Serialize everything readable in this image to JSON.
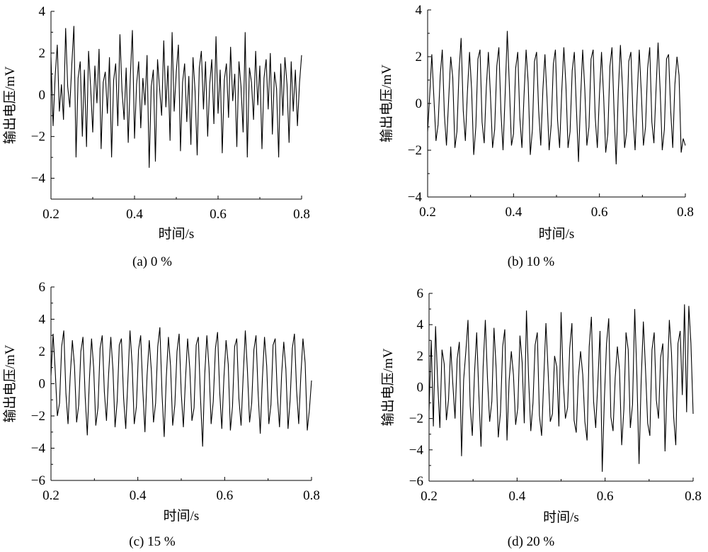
{
  "chart_data": [
    {
      "type": "line",
      "caption": "(a) 0 %",
      "xlabel": "时间/s",
      "ylabel": "输出电压/mV",
      "xlim": [
        0.2,
        0.8
      ],
      "ylim": [
        -5,
        4
      ],
      "xticks": [
        "0.2",
        "0.4",
        "0.6",
        "0.8"
      ],
      "yticks": [
        "4",
        "2",
        "0",
        "−2",
        "−4"
      ],
      "ytick_values": [
        4,
        2,
        0,
        -2,
        -4
      ],
      "xtick_values": [
        0.2,
        0.4,
        0.6,
        0.8
      ],
      "series": [
        {
          "name": "0 %",
          "color": "#000000",
          "x_range": [
            0.2,
            0.8
          ],
          "values": [
            1.8,
            -1.5,
            0.9,
            2.4,
            -0.8,
            0.5,
            -1.2,
            3.2,
            0.4,
            -0.6,
            1.5,
            3.3,
            -3.0,
            0.8,
            1.6,
            -2.0,
            1.2,
            -2.5,
            2.1,
            0.3,
            -1.8,
            1.4,
            -0.4,
            2.2,
            -2.6,
            0.6,
            1.1,
            -0.9,
            1.8,
            -3.0,
            0.7,
            1.5,
            -1.5,
            2.9,
            0.2,
            -1.2,
            1.3,
            -2.3,
            0.9,
            3.1,
            -2.1,
            0.5,
            1.6,
            -1.6,
            0.8,
            -0.5,
            1.9,
            -3.5,
            0.4,
            1.2,
            -3.2,
            1.7,
            0.3,
            -1.0,
            2.6,
            -0.6,
            1.4,
            -2.2,
            3.0,
            -0.8,
            1.1,
            2.4,
            -2.7,
            0.6,
            1.5,
            -1.3,
            0.9,
            -2.4,
            1.8,
            0.2,
            -2.9,
            1.3,
            2.1,
            -0.7,
            1.6,
            -2.0,
            0.5,
            1.7,
            -1.4,
            2.8,
            -0.9,
            1.2,
            -2.8,
            0.7,
            1.5,
            -1.1,
            2.3,
            -0.3,
            1.0,
            -2.5,
            1.6,
            0.4,
            -1.8,
            3.0,
            -3.0,
            1.3,
            0.6,
            -1.2,
            2.1,
            -0.5,
            1.4,
            -2.6,
            0.8,
            1.7,
            -0.7,
            2.0,
            -1.9,
            1.1,
            0.3,
            -3.0,
            1.5,
            -1.0,
            1.8,
            0.5,
            -2.3,
            1.6,
            -0.8,
            1.2,
            -1.5,
            0.6,
            1.9
          ]
        }
      ]
    },
    {
      "type": "line",
      "caption": "(b) 10 %",
      "xlabel": "时间/s",
      "ylabel": "输出电压/mV",
      "xlim": [
        0.2,
        0.8
      ],
      "ylim": [
        -4,
        4
      ],
      "xticks": [
        "0.2",
        "0.4",
        "0.6",
        "0.8"
      ],
      "yticks": [
        "4",
        "2",
        "0",
        "−2",
        "−4"
      ],
      "ytick_values": [
        4,
        2,
        0,
        -2,
        -4
      ],
      "xtick_values": [
        0.2,
        0.4,
        0.6,
        0.8
      ],
      "series": [
        {
          "name": "10 %",
          "color": "#000000",
          "x_range": [
            0.2,
            0.8
          ],
          "values": [
            -1.2,
            0.4,
            2.1,
            0.2,
            -1.6,
            -0.9,
            1.2,
            2.3,
            -0.5,
            -1.8,
            0.1,
            2.0,
            1.1,
            -1.9,
            -1.2,
            1.4,
            2.8,
            -0.3,
            -1.6,
            0.5,
            2.2,
            0.6,
            -2.2,
            -1.0,
            1.9,
            2.3,
            -0.8,
            -1.7,
            0.7,
            2.2,
            0.3,
            -1.9,
            -1.1,
            1.6,
            2.4,
            -0.4,
            -2.0,
            0.4,
            3.1,
            0.8,
            -1.8,
            -1.3,
            1.5,
            2.2,
            -0.6,
            -1.9,
            0.3,
            2.3,
            0.9,
            -2.2,
            -1.1,
            1.8,
            2.2,
            -0.3,
            -1.8,
            0.6,
            2.1,
            0.2,
            -2.0,
            -0.9,
            1.7,
            2.3,
            -0.7,
            -1.9,
            0.5,
            2.4,
            0.8,
            -1.9,
            -1.2,
            1.4,
            2.2,
            -0.2,
            -2.5,
            0.2,
            2.3,
            0.6,
            -1.8,
            -1.0,
            1.9,
            2.3,
            -0.6,
            -1.9,
            0.4,
            2.2,
            0.3,
            -2.1,
            -1.3,
            1.6,
            2.4,
            -0.4,
            -2.6,
            0.5,
            2.5,
            0.7,
            -1.9,
            -1.2,
            1.8,
            2.2,
            -0.5,
            -2.0,
            0.3,
            2.3,
            0.4,
            -1.8,
            -1.0,
            1.5,
            2.4,
            -0.8,
            -1.7,
            0.6,
            2.6,
            0.5,
            -2.0,
            -1.1,
            1.9,
            2.1,
            -0.3,
            -1.9,
            0.8,
            2.0,
            1.2,
            -2.1,
            -1.5,
            -1.8
          ]
        }
      ]
    },
    {
      "type": "line",
      "caption": "(c) 15 %",
      "xlabel": "时间/s",
      "ylabel": "输出电压/mV",
      "xlim": [
        0.2,
        0.8
      ],
      "ylim": [
        -6,
        6
      ],
      "xticks": [
        "0.2",
        "0.4",
        "0.6",
        "0.8"
      ],
      "yticks": [
        "6",
        "4",
        "2",
        "0",
        "−2",
        "−4",
        "−6"
      ],
      "ytick_values": [
        6,
        4,
        2,
        0,
        -2,
        -4,
        -6
      ],
      "xtick_values": [
        0.2,
        0.4,
        0.6,
        0.8
      ],
      "series": [
        {
          "name": "15 %",
          "color": "#000000",
          "x_range": [
            0.2,
            0.8
          ],
          "values": [
            0.5,
            3.1,
            0.8,
            -2.0,
            -1.2,
            2.3,
            3.3,
            -0.6,
            -2.5,
            0.4,
            2.7,
            1.1,
            -2.4,
            -1.3,
            2.0,
            2.9,
            -0.8,
            -3.2,
            0.3,
            2.8,
            1.0,
            -2.6,
            -1.5,
            2.2,
            3.0,
            -0.5,
            -2.3,
            0.6,
            2.9,
            0.9,
            -2.7,
            -1.1,
            2.4,
            2.8,
            -0.9,
            -2.8,
            0.2,
            3.3,
            1.2,
            -2.5,
            -1.4,
            2.1,
            3.0,
            -0.4,
            -3.0,
            0.5,
            2.7,
            0.8,
            -2.4,
            -1.2,
            2.3,
            3.5,
            -0.7,
            -3.3,
            0.4,
            2.9,
            1.1,
            -2.6,
            -1.3,
            2.0,
            3.1,
            -0.6,
            -2.7,
            0.3,
            2.8,
            0.9,
            -2.3,
            -1.5,
            2.4,
            2.9,
            -0.8,
            -3.9,
            0.6,
            3.0,
            1.0,
            -2.5,
            -1.1,
            2.2,
            3.2,
            -0.5,
            -2.8,
            0.4,
            2.7,
            1.2,
            -2.9,
            -1.4,
            2.3,
            2.8,
            -0.9,
            -2.6,
            0.5,
            3.3,
            0.8,
            -2.4,
            -1.2,
            2.1,
            3.0,
            -0.6,
            -3.1,
            0.3,
            2.9,
            1.1,
            -2.5,
            -1.3,
            2.4,
            2.8,
            -0.7,
            -2.7,
            0.6,
            2.6,
            0.9,
            -2.8,
            -1.0,
            2.2,
            3.1,
            -0.4,
            -2.5,
            0.5,
            2.8,
            1.3,
            -2.9,
            -1.6,
            0.2
          ]
        }
      ]
    },
    {
      "type": "line",
      "caption": "(d) 20 %",
      "xlabel": "时间/s",
      "ylabel": "输出电压/mV",
      "xlim": [
        0.2,
        0.8
      ],
      "ylim": [
        -6,
        6
      ],
      "xticks": [
        "0.2",
        "0.4",
        "0.6",
        "0.8"
      ],
      "yticks": [
        "6",
        "4",
        "2",
        "0",
        "−2",
        "−4",
        "−6"
      ],
      "ytick_values": [
        6,
        4,
        2,
        0,
        -2,
        -4,
        -6
      ],
      "xtick_values": [
        0.2,
        0.4,
        0.6,
        0.8
      ],
      "series": [
        {
          "name": "20 %",
          "color": "#000000",
          "x_range": [
            0.2,
            0.8
          ],
          "values": [
            -1.5,
            3.0,
            -2.5,
            3.9,
            0.3,
            -2.6,
            2.4,
            1.5,
            -2.1,
            -0.8,
            2.6,
            0.2,
            -2.0,
            1.8,
            2.9,
            -4.4,
            0.5,
            2.3,
            4.3,
            -1.2,
            -3.1,
            0.9,
            3.5,
            -0.4,
            -3.8,
            1.3,
            4.3,
            0.6,
            -2.2,
            -0.9,
            3.8,
            1.2,
            -3.2,
            -1.6,
            2.6,
            3.7,
            -3.4,
            0.4,
            2.3,
            0.8,
            -2.4,
            -1.3,
            3.3,
            1.6,
            -2.3,
            4.9,
            0.6,
            -2.8,
            -1.0,
            2.7,
            3.5,
            -1.8,
            -3.1,
            0.5,
            4.1,
            1.0,
            -2.2,
            -1.7,
            2.0,
            1.3,
            -2.5,
            4.8,
            0.3,
            -2.0,
            -1.3,
            2.5,
            4.1,
            -2.1,
            -2.9,
            0.7,
            2.3,
            0.8,
            -2.2,
            -3.4,
            2.6,
            4.5,
            -0.9,
            -2.6,
            0.4,
            3.6,
            -5.4,
            -0.8,
            2.8,
            4.4,
            -1.9,
            -2.8,
            0.6,
            2.6,
            1.1,
            -3.7,
            -1.4,
            3.5,
            2.4,
            -2.6,
            -1.1,
            5.0,
            0.8,
            -4.9,
            0.4,
            4.2,
            1.2,
            -2.3,
            -3.1,
            2.4,
            3.5,
            -0.8,
            -2.0,
            1.9,
            2.8,
            -4.1,
            0.3,
            4.3,
            2.2,
            -1.9,
            -3.7,
            2.8,
            3.6,
            -0.5,
            5.3,
            -1.6,
            5.2,
            2.8,
            -1.7
          ]
        }
      ]
    }
  ]
}
